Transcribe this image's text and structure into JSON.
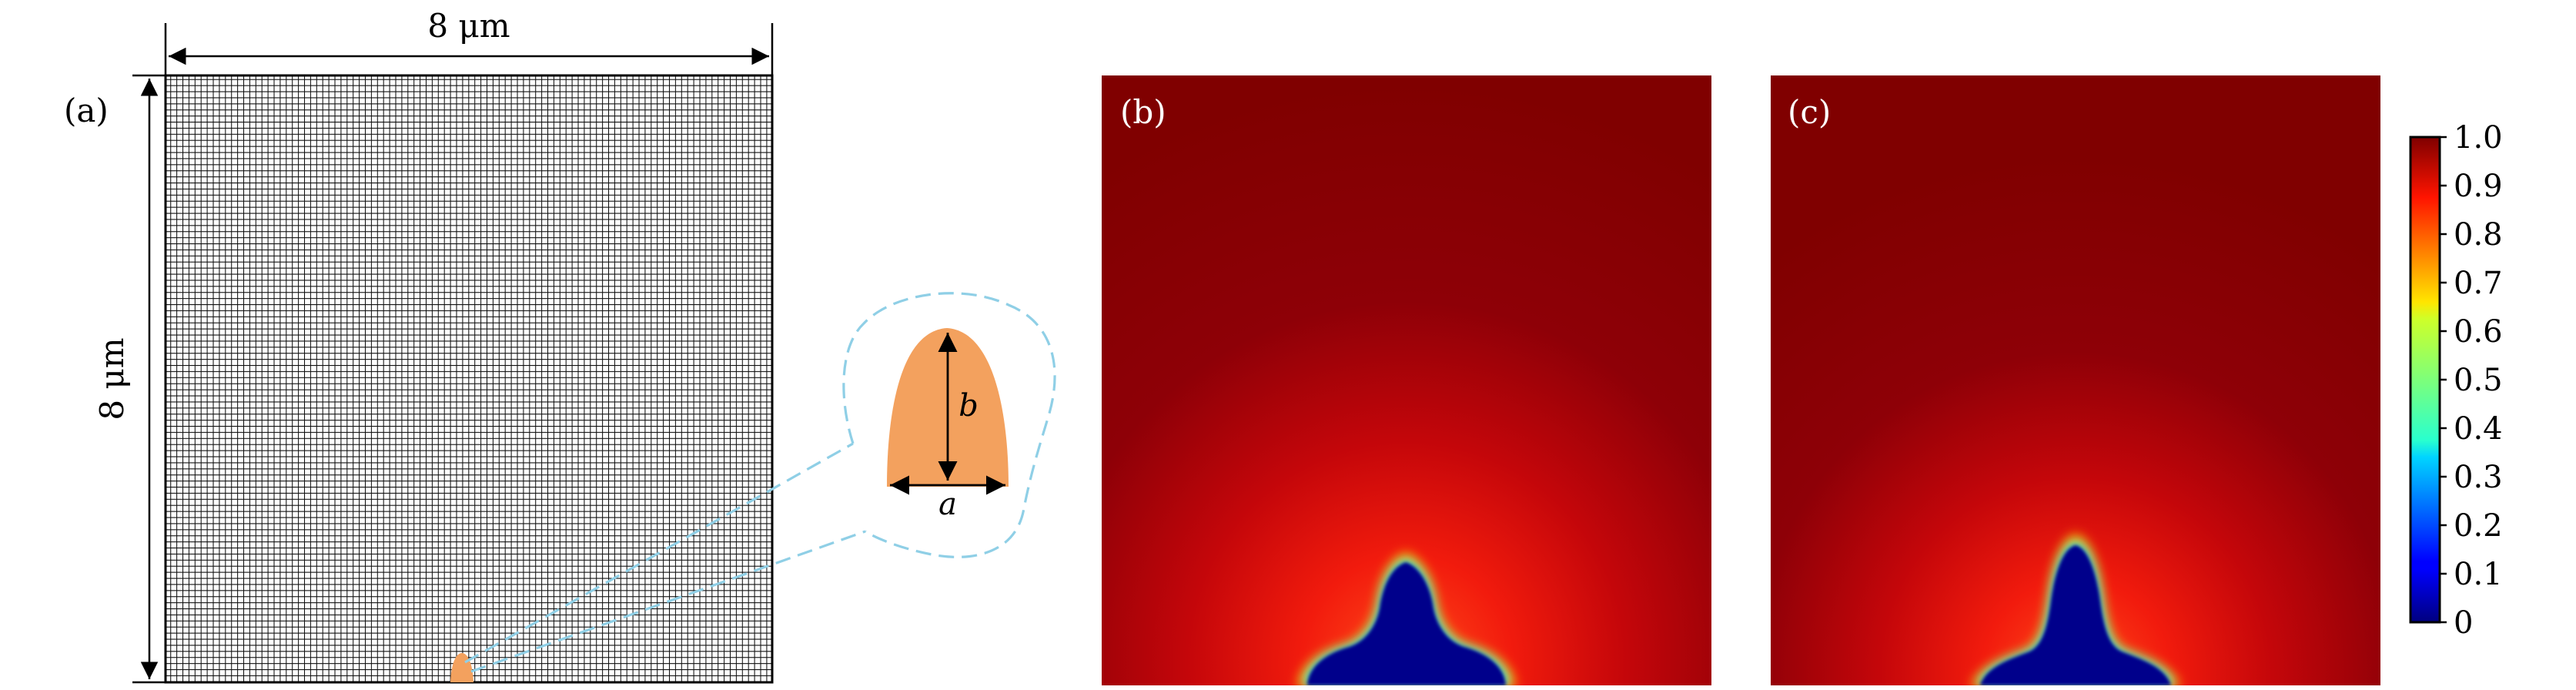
{
  "panel_a": {
    "label": "(a)",
    "width_dim": "8 μm",
    "height_dim": "8 μm",
    "inset": {
      "width_symbol": "a",
      "height_symbol": "b"
    },
    "colors": {
      "mesh_bg": "#ffffff",
      "mesh_line": "#111111",
      "seed": "#f3a15e",
      "callout": "#8fcfe6"
    }
  },
  "panel_b": {
    "label": "(b)"
  },
  "panel_c": {
    "label": "(c)"
  },
  "colorbar": {
    "ticks": [
      "1.0",
      "0.9",
      "0.8",
      "0.7",
      "0.6",
      "0.5",
      "0.4",
      "0.3",
      "0.2",
      "0.1",
      "0"
    ],
    "colormap": "jet",
    "range": [
      0,
      1
    ]
  }
}
